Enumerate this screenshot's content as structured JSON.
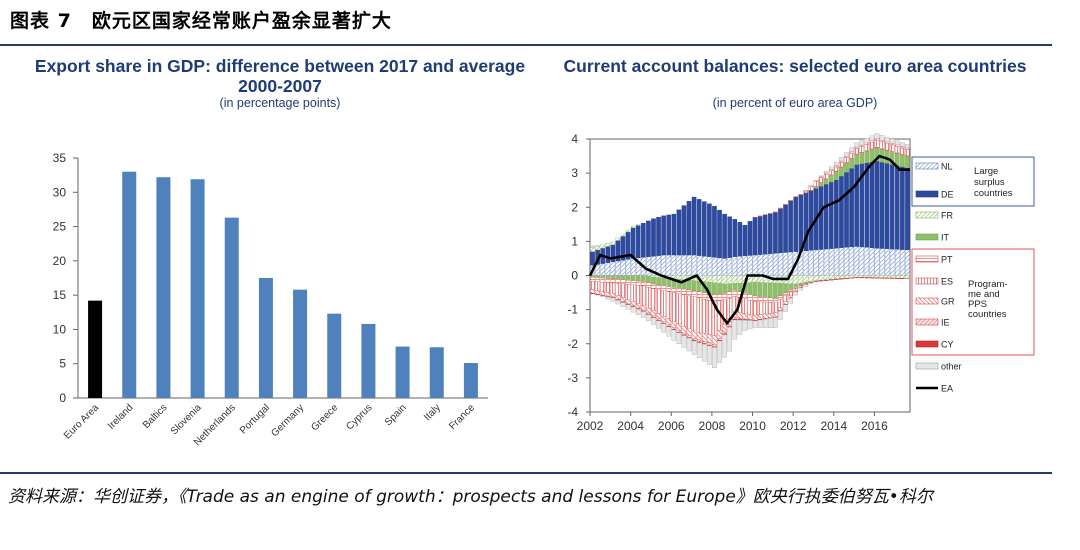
{
  "figure": {
    "title": "图表 7　欧元区国家经常账户盈余显著扩大",
    "source": "资料来源：华创证券，《Trade as an engine of growth：prospects and lessons for Europe》欧央行执委伯努瓦•科尔"
  },
  "colors": {
    "bar": "#4f81bd",
    "bar_highlight": "#000000",
    "title": "#1f3c75",
    "rule": "#243a6b",
    "surplus": "#2e4a9e",
    "nl": "#9dafd8",
    "fr_it": "#8fbf6a",
    "prog": "#e05a5a",
    "other": "#e0e0e0",
    "ea": "#000000",
    "legend_box1": "#3b5ba8",
    "legend_box2": "#e05a5a"
  },
  "chart_data": [
    {
      "type": "bar",
      "title": "Export share in GDP: difference between 2017 and average 2000-2007",
      "subtitle": "(in percentage points)",
      "categories": [
        "Euro Area",
        "Ireland",
        "Baltics",
        "Slovenia",
        "Netherlands",
        "Portugal",
        "Germany",
        "Greece",
        "Cyprus",
        "Spain",
        "Italy",
        "France"
      ],
      "values": [
        14.2,
        33.0,
        32.2,
        31.9,
        26.3,
        17.5,
        15.8,
        12.3,
        10.8,
        7.5,
        7.4,
        5.1
      ],
      "highlight": "Euro Area",
      "ylim": [
        0,
        35
      ],
      "yticks": [
        0,
        5,
        10,
        15,
        20,
        25,
        30,
        35
      ]
    },
    {
      "type": "bar",
      "stacked": true,
      "title": "Current account balances: selected euro area countries",
      "subtitle": "(in percent of euro area GDP)",
      "ylim": [
        -4,
        4
      ],
      "yticks": [
        -4,
        -3,
        -2,
        -1,
        0,
        1,
        2,
        3,
        4
      ],
      "xticks": [
        "2002",
        "2004",
        "2006",
        "2008",
        "2010",
        "2012",
        "2014",
        "2016"
      ],
      "x_range": [
        2002.0,
        2017.75
      ],
      "legend_group1_label": "Large surplus countries",
      "legend_group2_label": "Programme and PPS countries",
      "series": [
        {
          "name": "NL",
          "anchors": [
            [
              2002,
              0.3
            ],
            [
              2004,
              0.5
            ],
            [
              2005.5,
              0.6
            ],
            [
              2007,
              0.6
            ],
            [
              2008.5,
              0.5
            ],
            [
              2009,
              0.55
            ],
            [
              2010,
              0.6
            ],
            [
              2012,
              0.7
            ],
            [
              2014,
              0.8
            ],
            [
              2015,
              0.85
            ],
            [
              2016,
              0.8
            ],
            [
              2017.5,
              0.75
            ]
          ]
        },
        {
          "name": "DE",
          "anchors": [
            [
              2002,
              0.4
            ],
            [
              2003,
              0.5
            ],
            [
              2004,
              0.9
            ],
            [
              2005,
              1.1
            ],
            [
              2006,
              1.2
            ],
            [
              2007,
              1.7
            ],
            [
              2008,
              1.5
            ],
            [
              2008.75,
              1.2
            ],
            [
              2009.5,
              0.9
            ],
            [
              2010,
              1.1
            ],
            [
              2011,
              1.2
            ],
            [
              2012,
              1.6
            ],
            [
              2013,
              1.8
            ],
            [
              2014,
              2.0
            ],
            [
              2015,
              2.4
            ],
            [
              2016,
              2.55
            ],
            [
              2017.5,
              2.4
            ]
          ]
        },
        {
          "name": "FR",
          "anchors": [
            [
              2002,
              0.12
            ],
            [
              2004,
              0.05
            ],
            [
              2005,
              -0.05
            ],
            [
              2007,
              -0.15
            ],
            [
              2008.5,
              -0.25
            ],
            [
              2010,
              -0.2
            ],
            [
              2012,
              -0.25
            ],
            [
              2013,
              -0.15
            ],
            [
              2015,
              -0.05
            ],
            [
              2017.5,
              -0.08
            ]
          ]
        },
        {
          "name": "IT",
          "anchors": [
            [
              2002,
              -0.05
            ],
            [
              2004,
              -0.15
            ],
            [
              2006,
              -0.25
            ],
            [
              2008,
              -0.35
            ],
            [
              2009,
              -0.2
            ],
            [
              2010,
              -0.4
            ],
            [
              2011,
              -0.45
            ],
            [
              2012,
              -0.1
            ],
            [
              2013,
              0.05
            ],
            [
              2014,
              0.25
            ],
            [
              2015,
              0.3
            ],
            [
              2016,
              0.4
            ],
            [
              2017.5,
              0.35
            ]
          ]
        },
        {
          "name": "PT",
          "anchors": [
            [
              2002,
              -0.12
            ],
            [
              2004,
              -0.12
            ],
            [
              2006,
              -0.15
            ],
            [
              2008,
              -0.2
            ],
            [
              2009,
              -0.18
            ],
            [
              2010,
              -0.16
            ],
            [
              2011,
              -0.12
            ],
            [
              2012,
              -0.03
            ],
            [
              2013,
              0.01
            ],
            [
              2015,
              0.01
            ],
            [
              2017.5,
              0.01
            ]
          ]
        },
        {
          "name": "ES",
          "anchors": [
            [
              2002,
              -0.25
            ],
            [
              2003,
              -0.3
            ],
            [
              2004,
              -0.5
            ],
            [
              2005,
              -0.65
            ],
            [
              2006,
              -0.85
            ],
            [
              2007,
              -1.0
            ],
            [
              2008,
              -1.0
            ],
            [
              2009,
              -0.45
            ],
            [
              2010,
              -0.4
            ],
            [
              2011,
              -0.3
            ],
            [
              2012,
              -0.05
            ],
            [
              2013,
              0.15
            ],
            [
              2014,
              0.12
            ],
            [
              2016,
              0.2
            ],
            [
              2017.5,
              0.18
            ]
          ]
        },
        {
          "name": "GR",
          "anchors": [
            [
              2002,
              -0.1
            ],
            [
              2004,
              -0.12
            ],
            [
              2006,
              -0.18
            ],
            [
              2008,
              -0.25
            ],
            [
              2009,
              -0.18
            ],
            [
              2010,
              -0.15
            ],
            [
              2011,
              -0.12
            ],
            [
              2012,
              -0.04
            ],
            [
              2013,
              -0.02
            ],
            [
              2015,
              -0.01
            ],
            [
              2017.5,
              -0.01
            ]
          ]
        },
        {
          "name": "IE",
          "anchors": [
            [
              2002,
              -0.01
            ],
            [
              2004,
              -0.02
            ],
            [
              2006,
              -0.05
            ],
            [
              2007,
              -0.06
            ],
            [
              2008,
              -0.07
            ],
            [
              2009,
              -0.04
            ],
            [
              2010,
              0.01
            ],
            [
              2012,
              0.02
            ],
            [
              2014,
              0.04
            ],
            [
              2016,
              0.05
            ],
            [
              2017.5,
              0.05
            ]
          ]
        },
        {
          "name": "CY",
          "anchors": [
            [
              2002,
              -0.01
            ],
            [
              2008,
              -0.02
            ],
            [
              2010,
              -0.02
            ],
            [
              2012,
              -0.01
            ],
            [
              2017.5,
              0.0
            ]
          ]
        },
        {
          "name": "other",
          "anchors": [
            [
              2002,
              0.05
            ],
            [
              2003,
              -0.1
            ],
            [
              2005,
              -0.2
            ],
            [
              2007,
              -0.4
            ],
            [
              2008,
              -0.6
            ],
            [
              2008.75,
              -0.7
            ],
            [
              2009.5,
              -0.3
            ],
            [
              2010,
              -0.2
            ],
            [
              2011,
              -0.3
            ],
            [
              2012,
              -0.1
            ],
            [
              2014,
              0.1
            ],
            [
              2016,
              0.15
            ],
            [
              2017.5,
              0.1
            ]
          ]
        },
        {
          "name": "EA",
          "line": true,
          "anchors": [
            [
              2002,
              0.0
            ],
            [
              2002.5,
              0.6
            ],
            [
              2003,
              0.5
            ],
            [
              2004,
              0.6
            ],
            [
              2004.75,
              0.2
            ],
            [
              2005.5,
              0.0
            ],
            [
              2006.5,
              -0.2
            ],
            [
              2007.25,
              0.0
            ],
            [
              2007.75,
              -0.4
            ],
            [
              2008.25,
              -1.0
            ],
            [
              2008.75,
              -1.4
            ],
            [
              2009.25,
              -1.0
            ],
            [
              2009.75,
              0.0
            ],
            [
              2010.5,
              0.0
            ],
            [
              2011,
              -0.1
            ],
            [
              2011.75,
              -0.1
            ],
            [
              2012.25,
              0.5
            ],
            [
              2012.75,
              1.3
            ],
            [
              2013.5,
              2.0
            ],
            [
              2014.25,
              2.2
            ],
            [
              2015,
              2.6
            ],
            [
              2015.75,
              3.2
            ],
            [
              2016.25,
              3.5
            ],
            [
              2016.75,
              3.4
            ],
            [
              2017.25,
              3.1
            ]
          ]
        }
      ]
    }
  ]
}
